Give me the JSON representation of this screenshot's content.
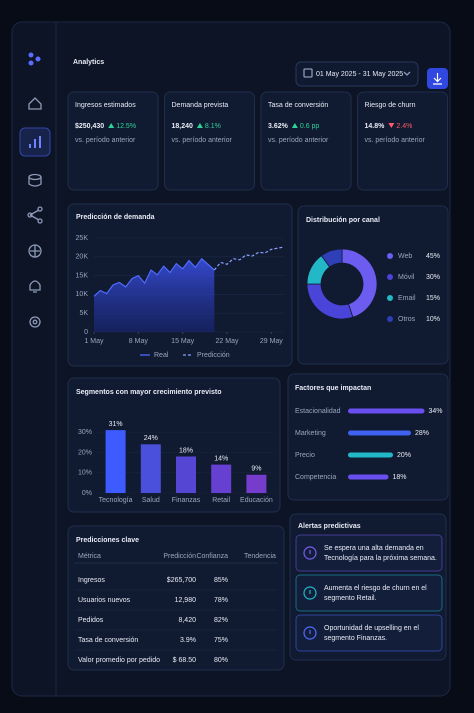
{
  "header": {
    "title": "Analytics",
    "date_range": "01 May 2025 - 31 May 2025"
  },
  "kpis": [
    {
      "label": "Ingresos estimados",
      "value": "$250,430",
      "change": "12.5%",
      "caption": "vs. período anterior",
      "color": "#2fd39a",
      "line_color": "#5b6cff"
    },
    {
      "label": "Demanda prevista",
      "value": "18,240",
      "change": "8.1%",
      "caption": "vs. período anterior",
      "color": "#2fd39a",
      "line_color": "#5b6cff"
    },
    {
      "label": "Tasa de conversión",
      "value": "3.62%",
      "change": "0.6 pp",
      "caption": "vs. período anterior",
      "color": "#2fd39a",
      "line_color": "#27c4b0"
    },
    {
      "label": "Riesgo de churn",
      "value": "14.8%",
      "change": "2.4%",
      "caption": "vs. período anterior",
      "color": "#ff5a6a",
      "line_color": "#ff4f5e"
    }
  ],
  "demand": {
    "type": "line",
    "title": "Predicción de demanda",
    "xlim": [
      1,
      31
    ],
    "xticks": [
      {
        "value": 1,
        "label": "1 May"
      },
      {
        "value": 8,
        "label": "8 May"
      },
      {
        "value": 15,
        "label": "15 May"
      },
      {
        "value": 22,
        "label": "22 May"
      },
      {
        "value": 29,
        "label": "29 May"
      }
    ],
    "ylim": [
      0,
      25000
    ],
    "yticks": [
      0,
      {
        "value": 5000,
        "label": "5K"
      },
      {
        "value": 10000,
        "label": "10K"
      },
      {
        "value": 15000,
        "label": "15K"
      },
      {
        "value": 20000,
        "label": "20K"
      },
      {
        "value": 25000,
        "label": "25K"
      }
    ],
    "grid": true,
    "series": [
      {
        "name": "Real",
        "color": "#4f6bff",
        "x": [
          1,
          2,
          3,
          4,
          5,
          6,
          7,
          8,
          9,
          10,
          11,
          12,
          13,
          14,
          15,
          16,
          17,
          18,
          19,
          20
        ],
        "values": [
          9500,
          11000,
          10200,
          12500,
          13200,
          12000,
          14200,
          15000,
          13000,
          16500,
          15200,
          17500,
          15800,
          18200,
          16800,
          19000,
          17200,
          19500,
          18000,
          16500
        ]
      },
      {
        "name": "Predicción",
        "color": "#8aa0ff",
        "dashed": true,
        "x": [
          20,
          21,
          22,
          23,
          24,
          25,
          26,
          27,
          28,
          29,
          30,
          31
        ],
        "values": [
          16500,
          18500,
          18000,
          19500,
          19200,
          20500,
          20200,
          21200,
          21000,
          22000,
          22300,
          22600
        ]
      }
    ]
  },
  "channels": {
    "type": "pie",
    "title": "Distribución por canal",
    "categories": [
      "Web",
      "Móvil",
      "Email",
      "Otros"
    ],
    "values": [
      45,
      30,
      15,
      10
    ],
    "value_labels": [
      "45%",
      "30%",
      "15%",
      "10%"
    ],
    "colors": [
      "#6d5cf0",
      "#4a44d8",
      "#22b8c8",
      "#2f3fb8"
    ]
  },
  "segments": {
    "type": "bar",
    "title": "Segmentos con mayor crecimiento previsto",
    "categories": [
      "Tecnología",
      "Salud",
      "Finanzas",
      "Retail",
      "Educación"
    ],
    "values": [
      31,
      24,
      18,
      14,
      9
    ],
    "value_labels": [
      "31%",
      "24%",
      "18%",
      "14%",
      "9%"
    ],
    "ylim": [
      0,
      35
    ],
    "yticks": [
      {
        "value": 0,
        "label": "0%"
      },
      {
        "value": 10,
        "label": "10%"
      },
      {
        "value": 20,
        "label": "20%"
      },
      {
        "value": 30,
        "label": "30%"
      }
    ],
    "colors": [
      "#3d5bff",
      "#4a4fdc",
      "#5646d4",
      "#6640d0",
      "#763ccc"
    ]
  },
  "factors": {
    "type": "hbar",
    "title": "Factores que impactan",
    "categories": [
      "Estacionalidad",
      "Marketing",
      "Precio",
      "Competencia"
    ],
    "values": [
      34,
      28,
      20,
      18
    ],
    "value_labels": [
      "34%",
      "28%",
      "20%",
      "18%"
    ],
    "xlim": [
      0,
      40
    ],
    "colors": [
      "#6a4ff0",
      "#3f63f0",
      "#22b8c8",
      "#6a4ff0"
    ]
  },
  "table": {
    "title": "Predicciones clave",
    "columns": [
      "Métrica",
      "Predicción",
      "Confianza",
      "Tendencia"
    ],
    "rows": [
      [
        "Ingresos",
        "$265,700",
        "85%"
      ],
      [
        "Usuarios nuevos",
        "12,980",
        "78%"
      ],
      [
        "Pedidos",
        "8,420",
        "82%"
      ],
      [
        "Tasa de conversión",
        "3.9%",
        "75%"
      ],
      [
        "Valor promedio por pedido",
        "$ 68.50",
        "80%"
      ]
    ]
  },
  "alerts": {
    "title": "Alertas predictivas",
    "items": [
      {
        "lines": [
          "Se espera una alta demanda en",
          "Tecnología para la próxima semana."
        ],
        "color": "#7b5cf0"
      },
      {
        "lines": [
          "Aumenta el riesgo de churn en el",
          "segmento Retail."
        ],
        "color": "#22b8c8"
      },
      {
        "lines": [
          "Oportunidad de upselling en el",
          "segmento Finanzas."
        ],
        "color": "#4f6bff"
      }
    ]
  }
}
